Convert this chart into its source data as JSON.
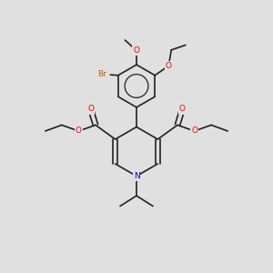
{
  "bg_color": "#e0e0e0",
  "bond_color": "#222222",
  "bond_width": 1.2,
  "atom_colors": {
    "O": "#ff0000",
    "N": "#0000ee",
    "Br": "#b86000"
  },
  "font_size": 6.5,
  "bold_font_size": 6.5
}
